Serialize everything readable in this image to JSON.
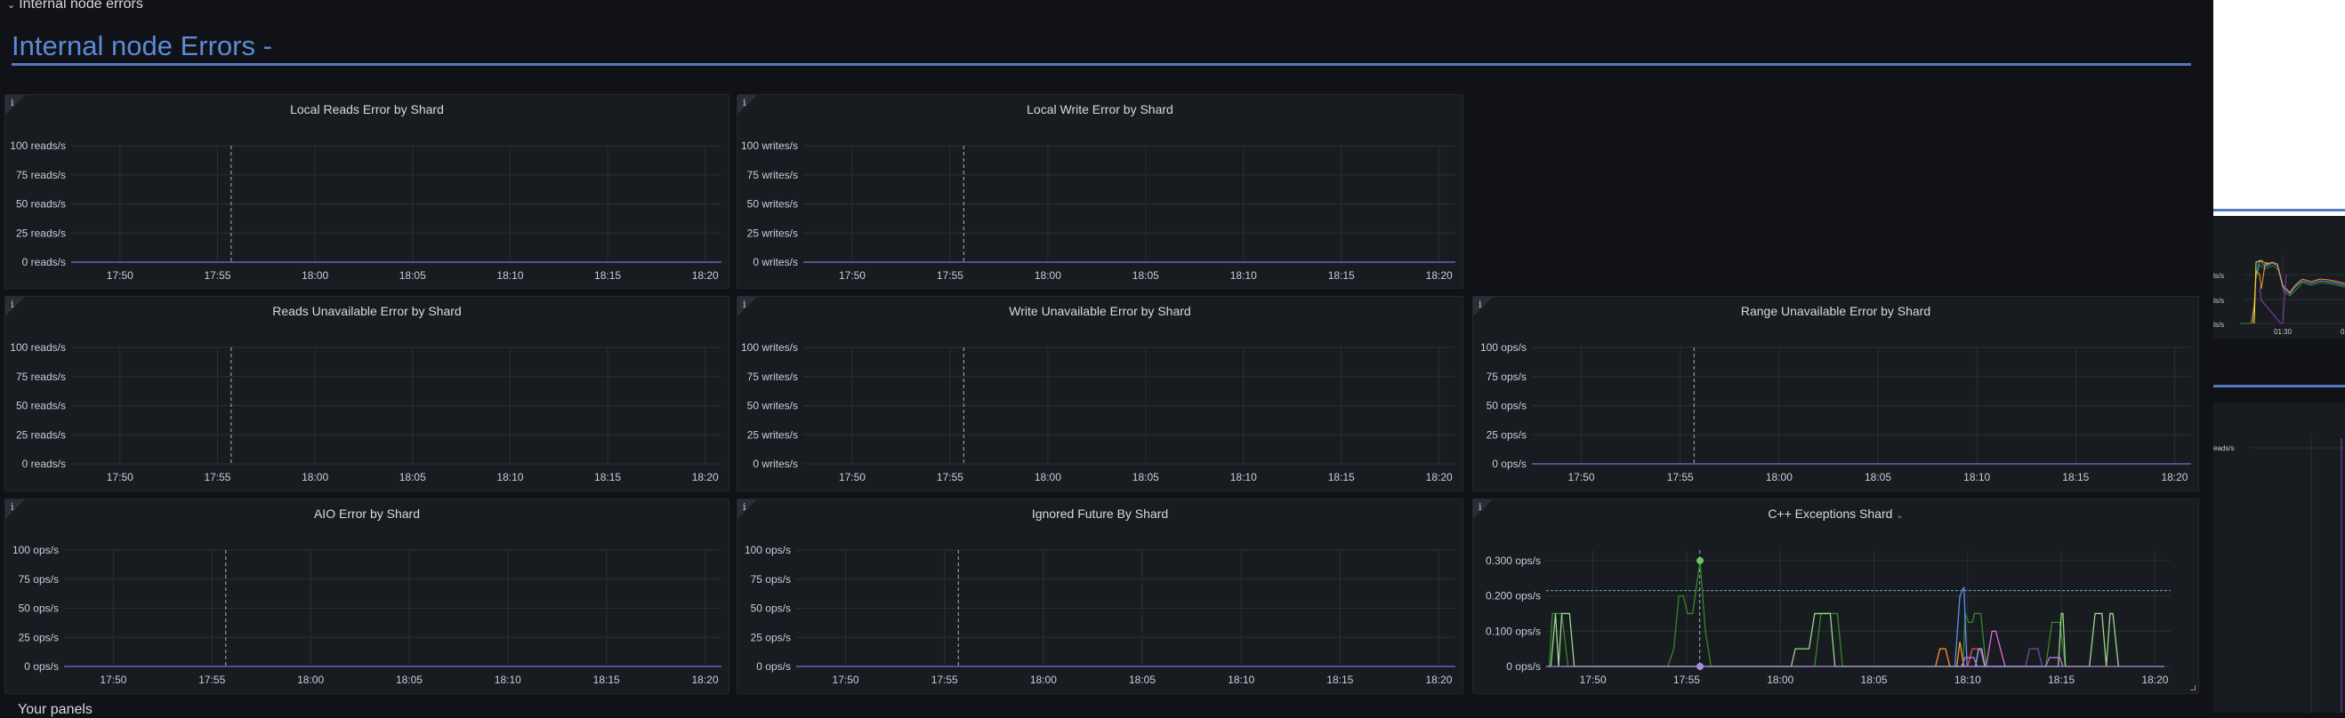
{
  "row": {
    "title": "Internal node errors",
    "chevron_icon": "chevron-down-icon"
  },
  "section_title": "Internal node Errors -",
  "next_row": {
    "title": "Your panels"
  },
  "colors": {
    "background": "#111217",
    "panel": "#181b1f",
    "accent": "#5479c1",
    "grid": "#2c2f35",
    "crosshair": "#8ab8d0"
  },
  "time_axis": {
    "start": "17:47:30",
    "end": "18:20:50",
    "ticks": [
      "17:50",
      "17:55",
      "18:00",
      "18:05",
      "18:10",
      "18:15",
      "18:20"
    ],
    "crosshair": "17:55:42"
  },
  "panels": [
    {
      "title": "Local Reads Error by Shard",
      "info_icon": "i",
      "unit": "reads/s",
      "yticks": [
        "0 reads/s",
        "25 reads/s",
        "50 reads/s",
        "75 reads/s",
        "100 reads/s"
      ],
      "ymax": 100,
      "series": [
        {
          "color": "#7b6fd0",
          "points": [
            [
              "17:47:30",
              0
            ],
            [
              "18:20:50",
              0
            ]
          ]
        }
      ]
    },
    {
      "title": "Local Write Error by Shard",
      "info_icon": "i",
      "unit": "writes/s",
      "yticks": [
        "0 writes/s",
        "25 writes/s",
        "50 writes/s",
        "75 writes/s",
        "100 writes/s"
      ],
      "ymax": 100,
      "series": [
        {
          "color": "#7b6fd0",
          "points": [
            [
              "17:47:30",
              0
            ],
            [
              "18:20:50",
              0
            ]
          ]
        }
      ]
    },
    {
      "title": "Reads Unavailable Error by Shard",
      "info_icon": "i",
      "unit": "reads/s",
      "yticks": [
        "0 reads/s",
        "25 reads/s",
        "50 reads/s",
        "75 reads/s",
        "100 reads/s"
      ],
      "ymax": 100,
      "series": []
    },
    {
      "title": "Write Unavailable Error by Shard",
      "info_icon": "i",
      "unit": "writes/s",
      "yticks": [
        "0 writes/s",
        "25 writes/s",
        "50 writes/s",
        "75 writes/s",
        "100 writes/s"
      ],
      "ymax": 100,
      "series": []
    },
    {
      "title": "Range Unavailable Error by Shard",
      "info_icon": "i",
      "unit": "ops/s",
      "yticks": [
        "0 ops/s",
        "25 ops/s",
        "50 ops/s",
        "75 ops/s",
        "100 ops/s"
      ],
      "ymax": 100,
      "series": [
        {
          "color": "#7b6fd0",
          "points": [
            [
              "17:47:30",
              0
            ],
            [
              "18:20:50",
              0
            ]
          ]
        }
      ]
    },
    {
      "title": "AIO Error by Shard",
      "info_icon": "i",
      "unit": "ops/s",
      "yticks": [
        "0 ops/s",
        "25 ops/s",
        "50 ops/s",
        "75 ops/s",
        "100 ops/s"
      ],
      "ymax": 100,
      "series": [
        {
          "color": "#7b6fd0",
          "points": [
            [
              "17:47:30",
              0
            ],
            [
              "18:20:50",
              0
            ]
          ]
        }
      ]
    },
    {
      "title": "Ignored Future By Shard",
      "info_icon": "i",
      "unit": "ops/s",
      "yticks": [
        "0 ops/s",
        "25 ops/s",
        "50 ops/s",
        "75 ops/s",
        "100 ops/s"
      ],
      "ymax": 100,
      "series": [
        {
          "color": "#7b6fd0",
          "points": [
            [
              "17:47:30",
              0
            ],
            [
              "18:20:50",
              0
            ]
          ]
        }
      ]
    },
    {
      "title": "C++ Exceptions Shard",
      "title_menu_icon": "chevron-down-icon",
      "info_icon": "i",
      "unit": "ops/s",
      "yticks": [
        "0 ops/s",
        "0.100 ops/s",
        "0.200 ops/s",
        "0.300 ops/s"
      ],
      "ytick_values": [
        0,
        0.1,
        0.2,
        0.3
      ],
      "ymax": 0.33,
      "threshold": 0.215,
      "series": [
        {
          "color": "#37872d",
          "points": [
            [
              "17:47:40",
              0
            ],
            [
              "17:47:50",
              0.15
            ],
            [
              "17:48:20",
              0.15
            ],
            [
              "17:48:40",
              0
            ],
            [
              "17:54:00",
              0
            ],
            [
              "17:54:19",
              0.05
            ],
            [
              "17:54:35",
              0.2
            ],
            [
              "17:54:49",
              0.2
            ],
            [
              "17:55:03",
              0.15
            ],
            [
              "17:55:19",
              0.15
            ],
            [
              "17:55:43",
              0.3
            ],
            [
              "17:56:00",
              0.1
            ],
            [
              "17:56:18",
              0
            ],
            [
              "18:01:50",
              0
            ],
            [
              "18:02:10",
              0.15
            ],
            [
              "18:02:48",
              0.15
            ],
            [
              "18:03:03",
              0.15
            ],
            [
              "18:03:19",
              0
            ],
            [
              "18:09:45",
              0
            ],
            [
              "18:09:52",
              0.15
            ],
            [
              "18:10:03",
              0.125
            ],
            [
              "18:10:15",
              0.125
            ],
            [
              "18:10:22",
              0.15
            ],
            [
              "18:10:42",
              0.15
            ],
            [
              "18:10:59",
              0
            ],
            [
              "18:14:10",
              0
            ],
            [
              "18:14:30",
              0.125
            ],
            [
              "18:14:55",
              0.125
            ],
            [
              "18:15:13",
              0
            ]
          ]
        },
        {
          "color": "#96d98d",
          "points": [
            [
              "17:47:45",
              0
            ],
            [
              "17:48:00",
              0.15
            ],
            [
              "17:48:10",
              0
            ],
            [
              "17:48:20",
              0.15
            ],
            [
              "17:48:45",
              0.15
            ],
            [
              "17:49:00",
              0
            ],
            [
              "18:00:35",
              0
            ],
            [
              "18:00:48",
              0.05
            ],
            [
              "18:01:32",
              0.05
            ],
            [
              "18:01:50",
              0.15
            ],
            [
              "18:02:40",
              0.15
            ],
            [
              "18:02:55",
              0
            ],
            [
              "18:14:50",
              0
            ],
            [
              "18:15:00",
              0.15
            ],
            [
              "18:15:05",
              0.15
            ],
            [
              "18:15:13",
              0
            ],
            [
              "18:16:30",
              0
            ],
            [
              "18:16:48",
              0.15
            ],
            [
              "18:17:10",
              0.15
            ],
            [
              "18:17:24",
              0
            ],
            [
              "18:17:36",
              0.15
            ],
            [
              "18:17:45",
              0.15
            ],
            [
              "18:18:03",
              0
            ]
          ]
        },
        {
          "color": "#ff9830",
          "points": [
            [
              "18:08:17",
              0
            ],
            [
              "18:08:31",
              0.05
            ],
            [
              "18:08:49",
              0.05
            ],
            [
              "18:09:03",
              0
            ],
            [
              "18:09:25",
              0
            ],
            [
              "18:09:35",
              0.07
            ],
            [
              "18:09:48",
              0
            ]
          ]
        },
        {
          "color": "#5794f2",
          "points": [
            [
              "18:09:19",
              0
            ],
            [
              "18:09:35",
              0.2
            ],
            [
              "18:09:48",
              0.225
            ],
            [
              "18:09:58",
              0
            ]
          ]
        },
        {
          "color": "#f2495c",
          "points": [
            [
              "18:10:00",
              0
            ],
            [
              "18:10:15",
              0.05
            ],
            [
              "18:10:40",
              0.05
            ],
            [
              "18:10:55",
              0
            ]
          ]
        },
        {
          "color": "#8ab8ff",
          "points": [
            [
              "18:10:25",
              0
            ],
            [
              "18:10:35",
              0.05
            ],
            [
              "18:10:45",
              0.05
            ],
            [
              "18:10:55",
              0
            ]
          ]
        },
        {
          "color": "#e36bd9",
          "points": [
            [
              "18:10:59",
              0
            ],
            [
              "18:11:18",
              0.1
            ],
            [
              "18:11:30",
              0.1
            ],
            [
              "18:12:00",
              0
            ]
          ]
        },
        {
          "color": "#b877d9",
          "points": [
            [
              "18:09:40",
              0
            ],
            [
              "18:09:52",
              0.025
            ],
            [
              "18:10:20",
              0.025
            ],
            [
              "18:10:30",
              0
            ],
            [
              "18:14:10",
              0
            ],
            [
              "18:14:22",
              0.025
            ],
            [
              "18:14:55",
              0.025
            ],
            [
              "18:15:05",
              0
            ]
          ]
        },
        {
          "color": "#6e4fa0",
          "points": [
            [
              "18:13:05",
              0
            ],
            [
              "18:13:18",
              0.05
            ],
            [
              "18:13:45",
              0.05
            ],
            [
              "18:13:59",
              0
            ]
          ]
        },
        {
          "color": "#a98ee0",
          "points": [
            [
              "17:47:30",
              0
            ],
            [
              "18:20:30",
              0
            ]
          ]
        }
      ],
      "hover_markers": [
        {
          "time": "17:55:43",
          "value": 0.3,
          "color": "#73bf69"
        },
        {
          "time": "17:55:43",
          "value": 0,
          "color": "#a98ee0"
        }
      ]
    }
  ],
  "right_strip": {
    "y_labels": [
      "ls/s",
      "ls/s",
      "ls/s"
    ],
    "x_labels": [
      "01:30",
      "02"
    ],
    "lower_label": "eads/s"
  }
}
